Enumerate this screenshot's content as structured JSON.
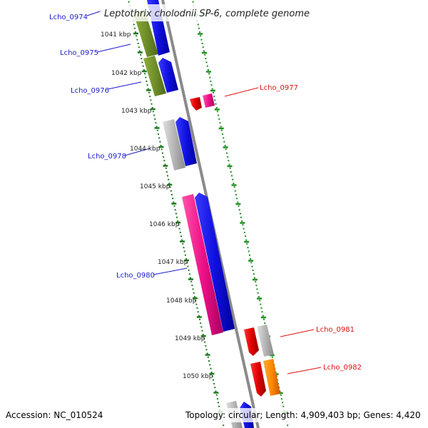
{
  "title": "Leptothrix cholodnii SP-6, complete genome",
  "footer": {
    "accession": "Accession: NC_010524",
    "topology": "Topology: circular; Length: 4,909,403 bp; Genes: 4,420"
  },
  "colors": {
    "backbone": "#8a8a8a",
    "tick_major": "#1f7a1f",
    "tick_minor": "#1f8f1f",
    "label_left": "#1a1acc",
    "label_right": "#dd1111",
    "gene_olive": "#6f8f2a",
    "gene_blue": "#1010e0",
    "gene_gray": "#b5b5b5",
    "gene_red": "#e00000",
    "gene_pink": "#ee1188",
    "gene_orange": "#ff8800"
  },
  "ticks": [
    "1041 kbp",
    "1042 kbp",
    "1043 kbp",
    "1044 kbp",
    "1045 kbp",
    "1046 kbp",
    "1047 kbp",
    "1048 kbp",
    "1049 kbp",
    "1050 kbp"
  ],
  "gene_labels_left": [
    "Lcho_0974",
    "Lcho_0975",
    "Lcho_0976",
    "Lcho_0978",
    "Lcho_0980"
  ],
  "gene_labels_right": [
    "Lcho_0977",
    "Lcho_0981",
    "Lcho_0982"
  ]
}
